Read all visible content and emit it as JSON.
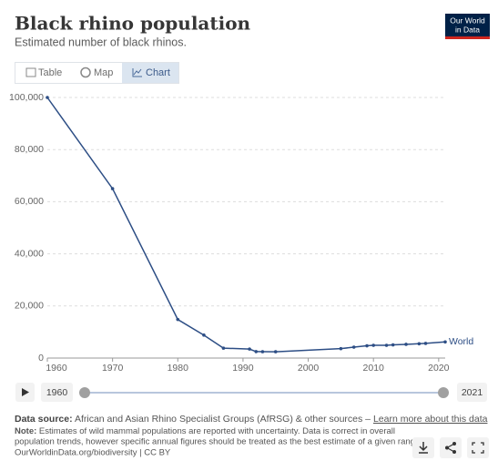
{
  "header": {
    "title": "Black rhino population",
    "subtitle": "Estimated number of black rhinos."
  },
  "logo": [
    "Our World",
    "in Data"
  ],
  "tabs": [
    "Table",
    "Map",
    "Chart"
  ],
  "chart_data": {
    "type": "line",
    "x": [
      1960,
      1970,
      1980,
      1984,
      1987,
      1991,
      1992,
      1993,
      1995,
      2005,
      2007,
      2009,
      2010,
      2012,
      2013,
      2015,
      2017,
      2018,
      2021
    ],
    "series": [
      {
        "name": "World",
        "color": "#2d4e85",
        "values": [
          100000,
          65000,
          14800,
          8800,
          3800,
          3450,
          2475,
          2450,
          2410,
          3610,
          4180,
          4700,
          4880,
          4880,
          5055,
          5250,
          5495,
          5630,
          6195
        ]
      }
    ],
    "xlim": [
      1960,
      2021
    ],
    "xticks": [
      1960,
      1970,
      1980,
      1990,
      2000,
      2010,
      2020
    ],
    "ylim": [
      0,
      100000
    ],
    "yticks": [
      0,
      {
        "value": 20000,
        "label": "20,000"
      },
      {
        "value": 40000,
        "label": "40,000"
      },
      {
        "value": 60000,
        "label": "60,000"
      },
      {
        "value": 80000,
        "label": "80,000"
      },
      {
        "value": 100000,
        "label": "100,000"
      }
    ],
    "grid": true
  },
  "timeline": {
    "start": "1960",
    "end": "2021"
  },
  "footer": {
    "source_label": "Data source:",
    "source": "African and Asian Rhino Specialist Groups (AfRSG) & other sources – ",
    "source_link": "Learn more about this data",
    "note_label": "Note:",
    "note_1": "Estimates of wild mammal populations are reported with uncertainty. Data is correct in overall",
    "note_2": "population trends, however specific annual figures should be treated as the best estimate of a given range.",
    "url": "OurWorldinData.org/biodiversity | CC BY"
  }
}
